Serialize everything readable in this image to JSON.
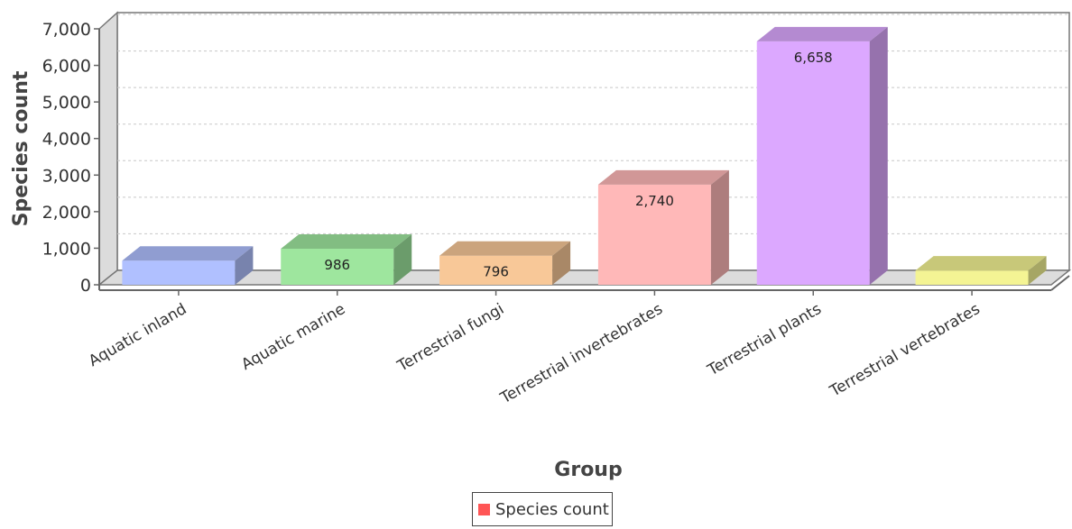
{
  "chart_data": {
    "type": "bar",
    "style": "3d",
    "xlabel": "Group",
    "ylabel": "Species count",
    "categories": [
      "Aquatic inland",
      "Aquatic marine",
      "Terrestrial fungi",
      "Terrestrial invertebrates",
      "Terrestrial plants",
      "Terrestrial vertebrates"
    ],
    "series": [
      {
        "name": "Species count",
        "values": [
          660,
          986,
          796,
          2740,
          6658,
          390
        ],
        "data_labels": [
          "",
          "986",
          "796",
          "2,740",
          "6,658",
          ""
        ],
        "colors": [
          "#b0c0ff",
          "#9ee69e",
          "#f8c898",
          "#ffb8b8",
          "#dca8ff",
          "#f4f494"
        ],
        "legend_color": "#ff5555"
      }
    ],
    "ylim": [
      0,
      7000
    ],
    "yticks": [
      "0",
      "1,000",
      "2,000",
      "3,000",
      "4,000",
      "5,000",
      "6,000",
      "7,000"
    ],
    "grid": true,
    "legend_position": "bottom-center"
  }
}
